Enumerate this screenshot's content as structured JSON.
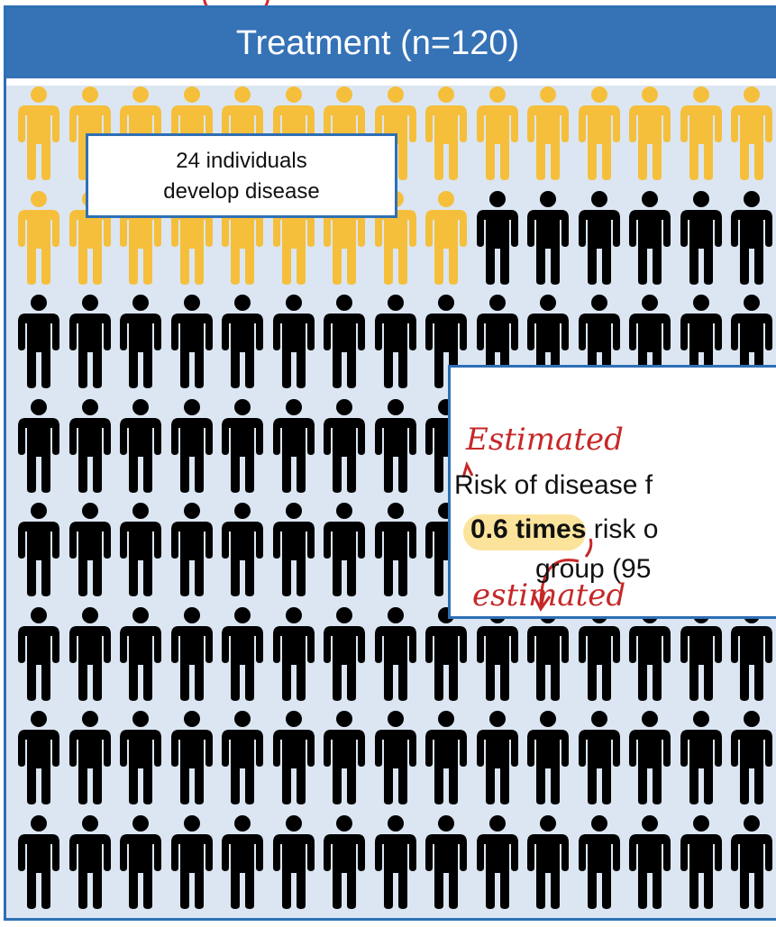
{
  "panel": {
    "title": "Treatment (n=120)"
  },
  "count_box": {
    "line1": "24 individuals",
    "line2": "develop disease"
  },
  "risk_box": {
    "handwritten_top": "Estimated",
    "line1": "Risk of disease f",
    "line2_bold": "0.6 times",
    "line2_rest": " risk o",
    "line3": "group (95",
    "handwritten_bottom": "estimated"
  },
  "icons": {
    "total": 120,
    "diseased": 24,
    "per_row": 15,
    "icon_name": "person-icon"
  },
  "colors": {
    "diseased": "#f5bf3c",
    "healthy": "#000000",
    "header": "#3572b6",
    "panel_bg": "#dbe6f2",
    "border": "#2e6fb5",
    "annotation": "#c62828",
    "highlight": "#fbe39b"
  }
}
